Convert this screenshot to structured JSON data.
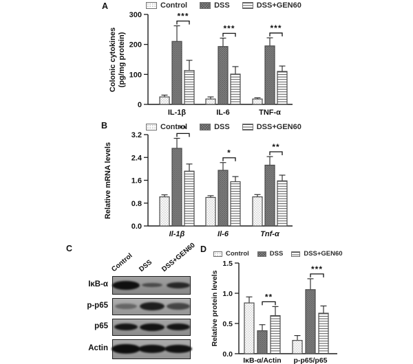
{
  "panels": {
    "a_label": "A",
    "b_label": "B",
    "c_label": "C",
    "d_label": "D"
  },
  "colors": {
    "axis": "#1a1a1a",
    "bar_stroke": "#4a4a4a",
    "control_fill": "#fdfdfd",
    "control_dot": "#c4c4c4",
    "dss_fill": "#8d8d8d",
    "dss_hatch": "#5e5e5e",
    "gen_fill": "#ffffff",
    "gen_line": "#555555"
  },
  "chart_data": [
    {
      "type": "bar",
      "panel": "A",
      "ylabel": "Colonic cytokines (pg/mg protein)",
      "ylabel_lines": [
        "Colonic cytokines",
        "(pg/mg protein)"
      ],
      "categories": [
        "IL-1β",
        "IL-6",
        "TNF-α"
      ],
      "categories_italic": false,
      "ylim": [
        0,
        300
      ],
      "yticks": [
        "0",
        "100",
        "200",
        "300"
      ],
      "grid": false,
      "legend_position": "top",
      "series": [
        {
          "name": "Control",
          "pattern": "dots",
          "values": [
            25,
            18,
            18
          ],
          "errors": [
            6,
            7,
            4
          ]
        },
        {
          "name": "DSS",
          "pattern": "crosshatch",
          "values": [
            210,
            193,
            195
          ],
          "errors": [
            52,
            28,
            27
          ]
        },
        {
          "name": "DSS+GEN60",
          "pattern": "hlines",
          "values": [
            113,
            101,
            110
          ],
          "errors": [
            34,
            25,
            18
          ]
        }
      ],
      "significance": [
        {
          "category_index": 0,
          "bar_names": [
            "DSS",
            "DSS+GEN60"
          ],
          "label": "***"
        },
        {
          "category_index": 1,
          "bar_names": [
            "DSS",
            "DSS+GEN60"
          ],
          "label": "***"
        },
        {
          "category_index": 2,
          "bar_names": [
            "DSS",
            "DSS+GEN60"
          ],
          "label": "***"
        }
      ]
    },
    {
      "type": "bar",
      "panel": "B",
      "ylabel": "Relative mRNA levels",
      "categories": [
        "Il-1β",
        "Il-6",
        "Tnf-α"
      ],
      "categories_italic": true,
      "ylim": [
        0,
        3.2
      ],
      "yticks": [
        "0.0",
        "0.8",
        "1.6",
        "2.4",
        "3.2"
      ],
      "grid": false,
      "legend_position": "top",
      "series": [
        {
          "name": "Control",
          "pattern": "dots",
          "values": [
            1.02,
            1.0,
            1.02
          ],
          "errors": [
            0.07,
            0.06,
            0.08
          ]
        },
        {
          "name": "DSS",
          "pattern": "crosshatch",
          "values": [
            2.72,
            1.95,
            2.13
          ],
          "errors": [
            0.35,
            0.27,
            0.3
          ]
        },
        {
          "name": "DSS+GEN60",
          "pattern": "hlines",
          "values": [
            1.92,
            1.55,
            1.58
          ],
          "errors": [
            0.25,
            0.18,
            0.2
          ]
        }
      ],
      "significance": [
        {
          "category_index": 0,
          "bar_names": [
            "DSS",
            "DSS+GEN60"
          ],
          "label": "**"
        },
        {
          "category_index": 1,
          "bar_names": [
            "DSS",
            "DSS+GEN60"
          ],
          "label": "*"
        },
        {
          "category_index": 2,
          "bar_names": [
            "DSS",
            "DSS+GEN60"
          ],
          "label": "**"
        }
      ]
    },
    {
      "type": "bar",
      "panel": "D",
      "ylabel": "Relative protein levels",
      "categories": [
        "IκB-α/Actin",
        "p-p65/p65"
      ],
      "categories_italic": false,
      "ylim": [
        0,
        1.5
      ],
      "yticks": [
        "0.0",
        "0.5",
        "1.0",
        "1.5"
      ],
      "grid": false,
      "legend_position": "top",
      "series": [
        {
          "name": "Control",
          "pattern": "dots",
          "values": [
            0.84,
            0.22
          ],
          "errors": [
            0.1,
            0.08
          ]
        },
        {
          "name": "DSS",
          "pattern": "crosshatch",
          "values": [
            0.38,
            1.06
          ],
          "errors": [
            0.1,
            0.18
          ]
        },
        {
          "name": "DSS+GEN60",
          "pattern": "hlines",
          "values": [
            0.63,
            0.67
          ],
          "errors": [
            0.15,
            0.12
          ]
        }
      ],
      "significance": [
        {
          "category_index": 0,
          "bar_names": [
            "DSS",
            "DSS+GEN60"
          ],
          "label": "**"
        },
        {
          "category_index": 1,
          "bar_names": [
            "DSS",
            "DSS+GEN60"
          ],
          "label": "***"
        }
      ]
    }
  ],
  "blot": {
    "panel": "C",
    "lane_labels": [
      "Control",
      "DSS",
      "DSS+GEN60"
    ],
    "rows": [
      {
        "label": "IκB-α",
        "bg": "#969696",
        "band_intensities": [
          0.97,
          0.55,
          0.8
        ],
        "band_w": [
          40,
          30,
          34
        ],
        "band_h": [
          13,
          6,
          9
        ]
      },
      {
        "label": "p-p65",
        "bg": "#a6a6a6",
        "band_intensities": [
          0.4,
          0.88,
          0.62
        ],
        "band_w": [
          32,
          36,
          34
        ],
        "band_h": [
          8,
          12,
          10
        ]
      },
      {
        "label": "p65",
        "bg": "#9c9c9c",
        "band_intensities": [
          0.93,
          0.95,
          0.93
        ],
        "band_w": [
          34,
          36,
          34
        ],
        "band_h": [
          10,
          11,
          10
        ]
      },
      {
        "label": "Actin",
        "bg": "#a2a2a2",
        "band_intensities": [
          0.98,
          0.96,
          0.96
        ],
        "band_w": [
          42,
          40,
          40
        ],
        "band_h": [
          14,
          12,
          12
        ]
      }
    ]
  }
}
